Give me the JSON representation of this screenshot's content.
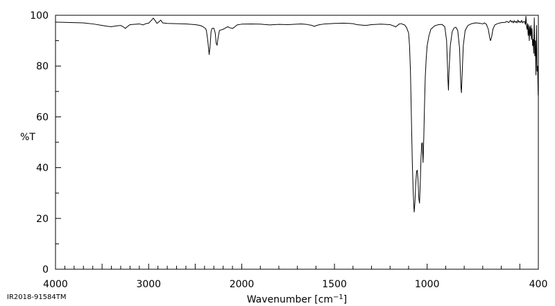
{
  "chart_data": {
    "type": "line",
    "xlabel": "Wavenumber [cm",
    "xlabel_sup": "−1",
    "xlabel_close": "]",
    "ylabel": "%T",
    "xlim": [
      4000,
      400
    ],
    "ylim": [
      0,
      100
    ],
    "x_ticks": [
      4000,
      3000,
      2000,
      1500,
      1000,
      400
    ],
    "y_ticks": [
      0,
      20,
      40,
      60,
      80,
      100
    ],
    "footer": "IR2018-91584TM",
    "grid": false,
    "x_axis_scale": "compressed below 2000 cm-1",
    "line_color": "#000000",
    "series": [
      {
        "points": [
          [
            4000,
            97.3
          ],
          [
            3900,
            97.2
          ],
          [
            3800,
            97.1
          ],
          [
            3700,
            97.0
          ],
          [
            3600,
            96.6
          ],
          [
            3500,
            96.0
          ],
          [
            3450,
            95.7
          ],
          [
            3400,
            95.5
          ],
          [
            3350,
            95.8
          ],
          [
            3300,
            96.0
          ],
          [
            3270,
            95.4
          ],
          [
            3250,
            94.8
          ],
          [
            3230,
            95.5
          ],
          [
            3200,
            96.3
          ],
          [
            3100,
            96.6
          ],
          [
            3060,
            96.2
          ],
          [
            3030,
            96.7
          ],
          [
            3000,
            96.9
          ],
          [
            2970,
            98.0
          ],
          [
            2950,
            98.9
          ],
          [
            2930,
            97.9
          ],
          [
            2910,
            96.8
          ],
          [
            2890,
            97.4
          ],
          [
            2870,
            98.1
          ],
          [
            2850,
            97.0
          ],
          [
            2800,
            96.8
          ],
          [
            2700,
            96.7
          ],
          [
            2600,
            96.6
          ],
          [
            2500,
            96.3
          ],
          [
            2450,
            96.0
          ],
          [
            2420,
            95.6
          ],
          [
            2400,
            95.0
          ],
          [
            2390,
            94.9
          ],
          [
            2380,
            94.0
          ],
          [
            2365,
            90.0
          ],
          [
            2350,
            84.5
          ],
          [
            2340,
            88.0
          ],
          [
            2330,
            93.5
          ],
          [
            2320,
            94.8
          ],
          [
            2300,
            94.9
          ],
          [
            2285,
            93.0
          ],
          [
            2275,
            89.0
          ],
          [
            2265,
            88.2
          ],
          [
            2255,
            91.0
          ],
          [
            2240,
            94.0
          ],
          [
            2200,
            94.5
          ],
          [
            2150,
            95.5
          ],
          [
            2130,
            95.1
          ],
          [
            2100,
            94.8
          ],
          [
            2080,
            95.3
          ],
          [
            2050,
            96.2
          ],
          [
            2000,
            96.5
          ],
          [
            1950,
            96.6
          ],
          [
            1900,
            96.5
          ],
          [
            1850,
            96.2
          ],
          [
            1800,
            96.4
          ],
          [
            1750,
            96.3
          ],
          [
            1700,
            96.5
          ],
          [
            1680,
            96.6
          ],
          [
            1650,
            96.4
          ],
          [
            1620,
            96.0
          ],
          [
            1610,
            95.6
          ],
          [
            1600,
            95.9
          ],
          [
            1580,
            96.3
          ],
          [
            1550,
            96.6
          ],
          [
            1500,
            96.8
          ],
          [
            1450,
            96.9
          ],
          [
            1420,
            96.8
          ],
          [
            1400,
            96.7
          ],
          [
            1380,
            96.3
          ],
          [
            1350,
            96.1
          ],
          [
            1330,
            96.0
          ],
          [
            1300,
            96.3
          ],
          [
            1250,
            96.5
          ],
          [
            1200,
            96.3
          ],
          [
            1180,
            95.8
          ],
          [
            1170,
            95.4
          ],
          [
            1160,
            96.0
          ],
          [
            1150,
            96.6
          ],
          [
            1140,
            96.7
          ],
          [
            1120,
            96.1
          ],
          [
            1110,
            95.0
          ],
          [
            1100,
            93.0
          ],
          [
            1095,
            88.0
          ],
          [
            1090,
            78.0
          ],
          [
            1085,
            60.0
          ],
          [
            1080,
            42.0
          ],
          [
            1075,
            30.0
          ],
          [
            1070,
            22.5
          ],
          [
            1066,
            26.0
          ],
          [
            1062,
            33.0
          ],
          [
            1057,
            38.5
          ],
          [
            1053,
            39.0
          ],
          [
            1049,
            35.0
          ],
          [
            1045,
            28.0
          ],
          [
            1041,
            26.0
          ],
          [
            1037,
            34.0
          ],
          [
            1033,
            44.0
          ],
          [
            1029,
            49.5
          ],
          [
            1026,
            49.8
          ],
          [
            1022,
            42.0
          ],
          [
            1018,
            52.0
          ],
          [
            1014,
            65.0
          ],
          [
            1010,
            76.0
          ],
          [
            1005,
            83.0
          ],
          [
            1000,
            88.0
          ],
          [
            990,
            92.0
          ],
          [
            980,
            94.5
          ],
          [
            960,
            95.8
          ],
          [
            940,
            96.3
          ],
          [
            920,
            96.4
          ],
          [
            905,
            95.5
          ],
          [
            895,
            90.0
          ],
          [
            888,
            75.0
          ],
          [
            885,
            70.5
          ],
          [
            882,
            78.0
          ],
          [
            875,
            88.0
          ],
          [
            865,
            93.5
          ],
          [
            855,
            95.0
          ],
          [
            845,
            95.3
          ],
          [
            835,
            94.0
          ],
          [
            825,
            87.0
          ],
          [
            818,
            72.0
          ],
          [
            815,
            69.5
          ],
          [
            812,
            75.0
          ],
          [
            805,
            88.0
          ],
          [
            795,
            94.0
          ],
          [
            780,
            96.0
          ],
          [
            760,
            96.7
          ],
          [
            740,
            97.0
          ],
          [
            720,
            96.9
          ],
          [
            700,
            96.6
          ],
          [
            690,
            97.0
          ],
          [
            680,
            96.4
          ],
          [
            670,
            94.5
          ],
          [
            662,
            91.0
          ],
          [
            658,
            90.0
          ],
          [
            652,
            91.5
          ],
          [
            645,
            94.5
          ],
          [
            635,
            96.2
          ],
          [
            620,
            96.7
          ],
          [
            600,
            97.1
          ],
          [
            580,
            97.2
          ],
          [
            570,
            97.6
          ],
          [
            560,
            97.1
          ],
          [
            550,
            98.0
          ],
          [
            545,
            97.3
          ],
          [
            540,
            97.7
          ],
          [
            535,
            97.0
          ],
          [
            530,
            97.9
          ],
          [
            525,
            97.2
          ],
          [
            520,
            97.6
          ],
          [
            515,
            97.0
          ],
          [
            510,
            98.1
          ],
          [
            505,
            97.2
          ],
          [
            500,
            97.6
          ],
          [
            495,
            97.1
          ],
          [
            490,
            98.0
          ],
          [
            485,
            97.0
          ],
          [
            480,
            97.5
          ],
          [
            475,
            97.6
          ],
          [
            470,
            96.4
          ],
          [
            467,
            99.6
          ],
          [
            464,
            96.0
          ],
          [
            461,
            94.5
          ],
          [
            458,
            96.7
          ],
          [
            455,
            92.0
          ],
          [
            452,
            96.2
          ],
          [
            449,
            90.0
          ],
          [
            446,
            95.5
          ],
          [
            443,
            92.0
          ],
          [
            440,
            96.0
          ],
          [
            437,
            90.5
          ],
          [
            434,
            94.8
          ],
          [
            431,
            88.0
          ],
          [
            428,
            90.5
          ],
          [
            425,
            85.0
          ],
          [
            422,
            99.0
          ],
          [
            419,
            84.0
          ],
          [
            416,
            90.0
          ],
          [
            413,
            76.5
          ],
          [
            410,
            96.0
          ],
          [
            407,
            78.0
          ],
          [
            404,
            80.0
          ],
          [
            401,
            68.5
          ],
          [
            400,
            72.0
          ]
        ]
      }
    ]
  }
}
